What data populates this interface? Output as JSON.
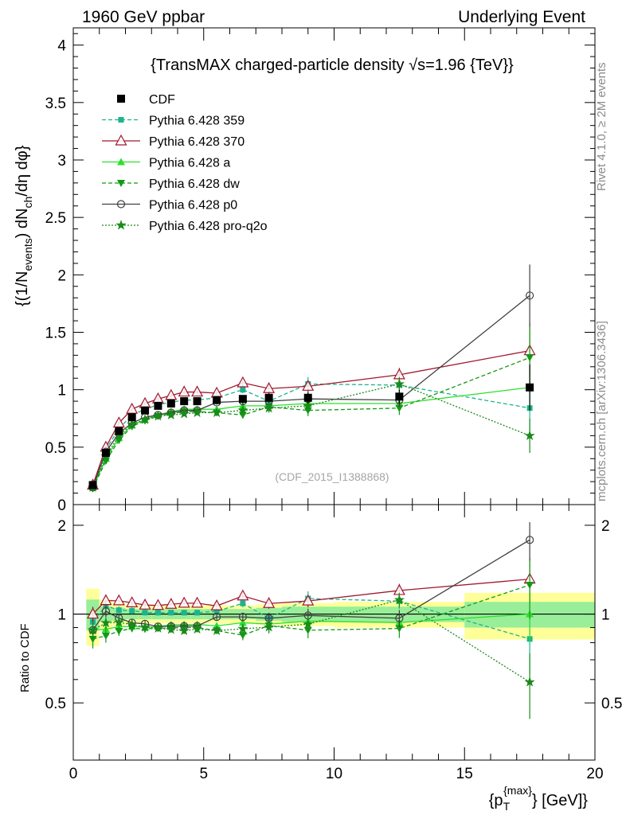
{
  "header": {
    "left": "1960 GeV ppbar",
    "right": "Underlying Event"
  },
  "side_labels": {
    "rivet": "Rivet 4.1.0, ≥ 2M events",
    "mcplots": "mcplots.cern.ch [arXiv:1306.3436]"
  },
  "chart_data": {
    "type": "line",
    "title": "{TransMAX charged-particle density √s=1.96 {TeV}}",
    "watermark": "(CDF_2015_I1388868)",
    "ylabel": "{(1/N_events) dN_ch/dη dφ}",
    "ylabel_parts": {
      "a": "{(1/N",
      "b": "events",
      "c": ") dN",
      "d": "ch",
      "e": "/dη  dφ}"
    },
    "xlabel": "{p_T^{max}} [GeV]}",
    "xlabel_parts": {
      "a": "{p",
      "b": "T",
      "c": "{max}",
      "d": "} [GeV]}"
    },
    "ratio_ylabel": "Ratio to CDF",
    "xlim": [
      0,
      20
    ],
    "ylim": [
      0,
      4.15
    ],
    "ratio_ylim": [
      0.32,
      2.35
    ],
    "x_ticks": [
      "0",
      "5",
      "10",
      "15",
      "20"
    ],
    "y_ticks": [
      "0",
      "0.5",
      "1",
      "1.5",
      "2",
      "2.5",
      "3",
      "3.5",
      "4"
    ],
    "ratio_ticks": [
      "0.5",
      "1",
      "2"
    ],
    "x": [
      0.75,
      1.25,
      1.75,
      2.25,
      2.75,
      3.25,
      3.75,
      4.25,
      4.75,
      5.5,
      6.5,
      7.5,
      9.0,
      12.5,
      17.5
    ],
    "data": {
      "name": "CDF",
      "values": [
        0.17,
        0.45,
        0.64,
        0.76,
        0.82,
        0.86,
        0.88,
        0.9,
        0.9,
        0.91,
        0.92,
        0.93,
        0.93,
        0.94,
        1.02
      ],
      "errors": [
        0.02,
        0.03,
        0.03,
        0.03,
        0.03,
        0.03,
        0.03,
        0.03,
        0.03,
        0.03,
        0.03,
        0.04,
        0.05,
        0.06,
        0.2
      ]
    },
    "series": [
      {
        "name": "Pythia 6.428 359",
        "color": "#1cb38e",
        "dash": "5,3",
        "marker": "square",
        "values": [
          0.16,
          0.48,
          0.66,
          0.78,
          0.83,
          0.87,
          0.89,
          0.91,
          0.91,
          0.93,
          1.0,
          0.9,
          1.05,
          1.04,
          0.84
        ],
        "errors": [
          0.01,
          0.02,
          0.02,
          0.02,
          0.02,
          0.02,
          0.02,
          0.02,
          0.02,
          0.02,
          0.03,
          0.04,
          0.06,
          0.06,
          0.2
        ]
      },
      {
        "name": "Pythia 6.428 370",
        "color": "#a0182e",
        "dash": "",
        "marker": "triangle-open",
        "values": [
          0.17,
          0.5,
          0.71,
          0.83,
          0.88,
          0.92,
          0.95,
          0.98,
          0.98,
          0.97,
          1.06,
          1.01,
          1.03,
          1.13,
          1.34
        ],
        "errors": [
          0.01,
          0.02,
          0.02,
          0.02,
          0.02,
          0.02,
          0.02,
          0.02,
          0.02,
          0.02,
          0.03,
          0.04,
          0.05,
          0.06,
          0.22
        ]
      },
      {
        "name": "Pythia 6.428 a",
        "color": "#2de02d",
        "dash": "",
        "marker": "triangle-up",
        "values": [
          0.15,
          0.4,
          0.58,
          0.69,
          0.74,
          0.78,
          0.81,
          0.83,
          0.83,
          0.83,
          0.86,
          0.86,
          0.88,
          0.88,
          1.02
        ],
        "errors": [
          0.01,
          0.02,
          0.02,
          0.02,
          0.02,
          0.02,
          0.02,
          0.02,
          0.02,
          0.02,
          0.03,
          0.04,
          0.05,
          0.06,
          0.2
        ]
      },
      {
        "name": "Pythia 6.428 dw",
        "color": "#129a12",
        "dash": "5,3",
        "marker": "triangle-down",
        "values": [
          0.14,
          0.38,
          0.56,
          0.68,
          0.73,
          0.77,
          0.79,
          0.81,
          0.81,
          0.8,
          0.78,
          0.85,
          0.82,
          0.84,
          1.28
        ],
        "errors": [
          0.01,
          0.02,
          0.02,
          0.02,
          0.02,
          0.02,
          0.02,
          0.02,
          0.02,
          0.02,
          0.03,
          0.04,
          0.05,
          0.06,
          0.3
        ]
      },
      {
        "name": "Pythia 6.428 p0",
        "color": "#404040",
        "dash": "",
        "marker": "circle-open",
        "values": [
          0.15,
          0.46,
          0.62,
          0.71,
          0.76,
          0.78,
          0.8,
          0.82,
          0.82,
          0.89,
          0.9,
          0.9,
          0.92,
          0.91,
          1.82
        ],
        "errors": [
          0.01,
          0.02,
          0.02,
          0.02,
          0.02,
          0.02,
          0.02,
          0.02,
          0.02,
          0.02,
          0.03,
          0.04,
          0.05,
          0.06,
          0.27
        ]
      },
      {
        "name": "Pythia 6.428 pro-q2o",
        "color": "#1a8a1a",
        "dash": "2,2",
        "marker": "star",
        "values": [
          0.15,
          0.42,
          0.6,
          0.7,
          0.74,
          0.77,
          0.78,
          0.79,
          0.8,
          0.8,
          0.82,
          0.84,
          0.86,
          1.05,
          0.6
        ],
        "errors": [
          0.01,
          0.02,
          0.02,
          0.02,
          0.02,
          0.02,
          0.02,
          0.02,
          0.02,
          0.02,
          0.03,
          0.04,
          0.05,
          0.06,
          0.15
        ]
      }
    ],
    "ratio_bands": {
      "edges": [
        0.5,
        1.0,
        1.5,
        2.0,
        2.5,
        3.0,
        3.5,
        4.0,
        4.5,
        5.0,
        6.0,
        7.0,
        8.0,
        10.0,
        15.0,
        20.0
      ],
      "inner": [
        0.12,
        0.06,
        0.05,
        0.04,
        0.04,
        0.04,
        0.04,
        0.04,
        0.04,
        0.04,
        0.04,
        0.05,
        0.06,
        0.06,
        0.1
      ],
      "outer": [
        0.22,
        0.12,
        0.09,
        0.07,
        0.07,
        0.07,
        0.07,
        0.07,
        0.07,
        0.07,
        0.07,
        0.08,
        0.09,
        0.1,
        0.18
      ]
    }
  }
}
